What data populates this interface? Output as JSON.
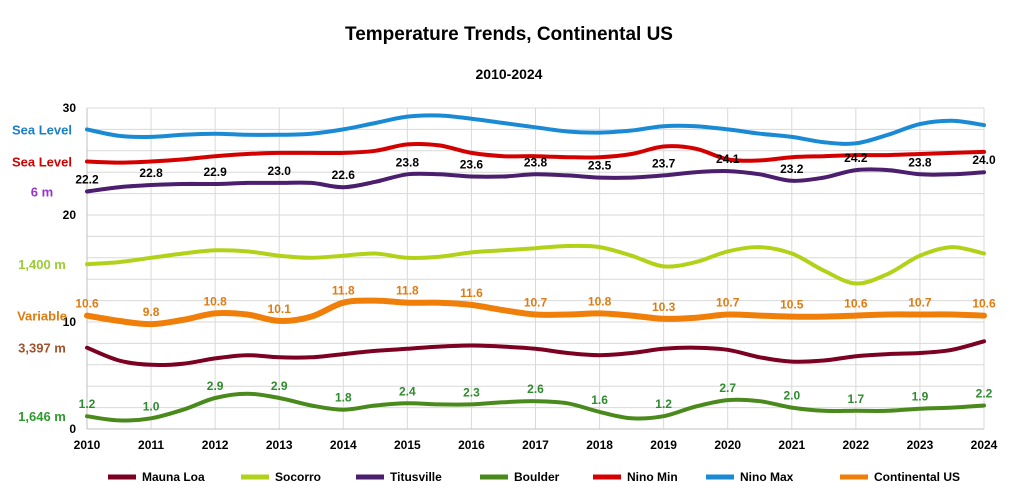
{
  "chart_data": {
    "type": "line",
    "title": "Temperature Trends, Continental US",
    "subtitle": "2010-2024",
    "xlabel": "",
    "ylabel": "",
    "x": [
      2010,
      2011,
      2012,
      2013,
      2014,
      2015,
      2016,
      2017,
      2018,
      2019,
      2020,
      2021,
      2022,
      2023,
      2024
    ],
    "x_ticks": [
      "2010",
      "2011",
      "2012",
      "2013",
      "2014",
      "2015",
      "2016",
      "2017",
      "2018",
      "2019",
      "2020",
      "2021",
      "2022",
      "2023",
      "2024"
    ],
    "y_ticks": [
      "0",
      "10",
      "20",
      "30"
    ],
    "ylim": [
      0,
      30
    ],
    "grid": true,
    "legend_position": "bottom",
    "series": [
      {
        "name": "Mauna Loa",
        "color": "#7b0022",
        "label_color": "#a0522d",
        "side_label": "3,397 m",
        "values": [
          [
            2010,
            7.6
          ],
          [
            2010.5,
            6.4
          ],
          [
            2011,
            6.0
          ],
          [
            2011.5,
            6.1
          ],
          [
            2012,
            6.6
          ],
          [
            2012.5,
            6.9
          ],
          [
            2013,
            6.7
          ],
          [
            2013.5,
            6.7
          ],
          [
            2014,
            7.0
          ],
          [
            2014.5,
            7.3
          ],
          [
            2015,
            7.5
          ],
          [
            2015.5,
            7.7
          ],
          [
            2016,
            7.8
          ],
          [
            2016.5,
            7.7
          ],
          [
            2017,
            7.5
          ],
          [
            2017.5,
            7.1
          ],
          [
            2018,
            6.9
          ],
          [
            2018.5,
            7.1
          ],
          [
            2019,
            7.5
          ],
          [
            2019.5,
            7.6
          ],
          [
            2020,
            7.4
          ],
          [
            2020.5,
            6.7
          ],
          [
            2021,
            6.3
          ],
          [
            2021.5,
            6.4
          ],
          [
            2022,
            6.8
          ],
          [
            2022.5,
            7.0
          ],
          [
            2023,
            7.1
          ],
          [
            2023.5,
            7.4
          ],
          [
            2024,
            8.2
          ]
        ],
        "labels": []
      },
      {
        "name": "Socorro",
        "color": "#b2d21a",
        "label_color": "#9acd32",
        "side_label": "1,400 m",
        "values": [
          [
            2010,
            15.4
          ],
          [
            2010.5,
            15.6
          ],
          [
            2011,
            16.0
          ],
          [
            2011.5,
            16.4
          ],
          [
            2012,
            16.7
          ],
          [
            2012.5,
            16.6
          ],
          [
            2013,
            16.2
          ],
          [
            2013.5,
            16.0
          ],
          [
            2014,
            16.2
          ],
          [
            2014.5,
            16.4
          ],
          [
            2015,
            16.0
          ],
          [
            2015.5,
            16.1
          ],
          [
            2016,
            16.5
          ],
          [
            2016.5,
            16.7
          ],
          [
            2017,
            16.9
          ],
          [
            2017.5,
            17.1
          ],
          [
            2018,
            17.0
          ],
          [
            2018.5,
            16.2
          ],
          [
            2019,
            15.2
          ],
          [
            2019.5,
            15.6
          ],
          [
            2020,
            16.6
          ],
          [
            2020.5,
            17.0
          ],
          [
            2021,
            16.4
          ],
          [
            2021.5,
            14.8
          ],
          [
            2022,
            13.6
          ],
          [
            2022.5,
            14.5
          ],
          [
            2023,
            16.2
          ],
          [
            2023.5,
            17.0
          ],
          [
            2024,
            16.4
          ]
        ],
        "labels": []
      },
      {
        "name": "Titusville",
        "color": "#4b1e6e",
        "label_color": "#9932cc",
        "side_label": "6 m",
        "values": [
          [
            2010,
            22.2
          ],
          [
            2010.5,
            22.6
          ],
          [
            2011,
            22.8
          ],
          [
            2011.5,
            22.9
          ],
          [
            2012,
            22.9
          ],
          [
            2012.5,
            23.0
          ],
          [
            2013,
            23.0
          ],
          [
            2013.5,
            23.0
          ],
          [
            2014,
            22.6
          ],
          [
            2014.5,
            23.1
          ],
          [
            2015,
            23.8
          ],
          [
            2015.5,
            23.8
          ],
          [
            2016,
            23.6
          ],
          [
            2016.5,
            23.6
          ],
          [
            2017,
            23.8
          ],
          [
            2017.5,
            23.7
          ],
          [
            2018,
            23.5
          ],
          [
            2018.5,
            23.5
          ],
          [
            2019,
            23.7
          ],
          [
            2019.5,
            24.0
          ],
          [
            2020,
            24.1
          ],
          [
            2020.5,
            23.8
          ],
          [
            2021,
            23.2
          ],
          [
            2021.5,
            23.5
          ],
          [
            2022,
            24.2
          ],
          [
            2022.5,
            24.2
          ],
          [
            2023,
            23.8
          ],
          [
            2023.5,
            23.8
          ],
          [
            2024,
            24.0
          ]
        ],
        "labels": [
          {
            "x": 2010,
            "text": "22.2"
          },
          {
            "x": 2011,
            "text": "22.8"
          },
          {
            "x": 2012,
            "text": "22.9"
          },
          {
            "x": 2013,
            "text": "23.0"
          },
          {
            "x": 2014,
            "text": "22.6"
          },
          {
            "x": 2015,
            "text": "23.8"
          },
          {
            "x": 2016,
            "text": "23.6"
          },
          {
            "x": 2017,
            "text": "23.8"
          },
          {
            "x": 2018,
            "text": "23.5"
          },
          {
            "x": 2019,
            "text": "23.7"
          },
          {
            "x": 2020,
            "text": "24.1"
          },
          {
            "x": 2021,
            "text": "23.2"
          },
          {
            "x": 2022,
            "text": "24.2"
          },
          {
            "x": 2023,
            "text": "23.8"
          },
          {
            "x": 2024,
            "text": "24.0"
          }
        ]
      },
      {
        "name": "Boulder",
        "color": "#4a8a1c",
        "label_color": "#2e9a2e",
        "side_label": "1,646 m",
        "values": [
          [
            2010,
            1.2
          ],
          [
            2010.5,
            0.8
          ],
          [
            2011,
            1.0
          ],
          [
            2011.5,
            1.8
          ],
          [
            2012,
            2.9
          ],
          [
            2012.5,
            3.3
          ],
          [
            2013,
            2.9
          ],
          [
            2013.5,
            2.2
          ],
          [
            2014,
            1.8
          ],
          [
            2014.5,
            2.2
          ],
          [
            2015,
            2.4
          ],
          [
            2015.5,
            2.3
          ],
          [
            2016,
            2.3
          ],
          [
            2016.5,
            2.5
          ],
          [
            2017,
            2.6
          ],
          [
            2017.5,
            2.4
          ],
          [
            2018,
            1.6
          ],
          [
            2018.5,
            1.0
          ],
          [
            2019,
            1.2
          ],
          [
            2019.5,
            2.1
          ],
          [
            2020,
            2.7
          ],
          [
            2020.5,
            2.6
          ],
          [
            2021,
            2.0
          ],
          [
            2021.5,
            1.7
          ],
          [
            2022,
            1.7
          ],
          [
            2022.5,
            1.7
          ],
          [
            2023,
            1.9
          ],
          [
            2023.5,
            2.0
          ],
          [
            2024,
            2.2
          ]
        ],
        "labels": [
          {
            "x": 2010,
            "text": "1.2"
          },
          {
            "x": 2011,
            "text": "1.0"
          },
          {
            "x": 2012,
            "text": "2.9"
          },
          {
            "x": 2013,
            "text": "2.9"
          },
          {
            "x": 2014,
            "text": "1.8"
          },
          {
            "x": 2015,
            "text": "2.4"
          },
          {
            "x": 2016,
            "text": "2.3"
          },
          {
            "x": 2017,
            "text": "2.6"
          },
          {
            "x": 2018,
            "text": "1.6"
          },
          {
            "x": 2019,
            "text": "1.2"
          },
          {
            "x": 2020,
            "text": "2.7"
          },
          {
            "x": 2021,
            "text": "2.0"
          },
          {
            "x": 2022,
            "text": "1.7"
          },
          {
            "x": 2023,
            "text": "1.9"
          },
          {
            "x": 2024,
            "text": "2.2"
          }
        ]
      },
      {
        "name": "Nino Min",
        "color": "#d40000",
        "label_color": "#d40000",
        "side_label": "Sea Level",
        "values": [
          [
            2010,
            25.0
          ],
          [
            2010.5,
            24.9
          ],
          [
            2011,
            25.0
          ],
          [
            2011.5,
            25.2
          ],
          [
            2012,
            25.5
          ],
          [
            2012.5,
            25.7
          ],
          [
            2013,
            25.8
          ],
          [
            2013.5,
            25.8
          ],
          [
            2014,
            25.8
          ],
          [
            2014.5,
            26.0
          ],
          [
            2015,
            26.6
          ],
          [
            2015.5,
            26.5
          ],
          [
            2016,
            25.8
          ],
          [
            2016.5,
            25.5
          ],
          [
            2017,
            25.5
          ],
          [
            2017.5,
            25.4
          ],
          [
            2018,
            25.4
          ],
          [
            2018.5,
            25.7
          ],
          [
            2019,
            26.4
          ],
          [
            2019.5,
            26.2
          ],
          [
            2020,
            25.2
          ],
          [
            2020.5,
            25.1
          ],
          [
            2021,
            25.4
          ],
          [
            2021.5,
            25.5
          ],
          [
            2022,
            25.6
          ],
          [
            2022.5,
            25.6
          ],
          [
            2023,
            25.7
          ],
          [
            2023.5,
            25.8
          ],
          [
            2024,
            25.9
          ]
        ],
        "labels": []
      },
      {
        "name": "Nino Max",
        "color": "#1a8ad4",
        "label_color": "#1a7fc8",
        "side_label": "Sea Level",
        "values": [
          [
            2010,
            28.0
          ],
          [
            2010.5,
            27.4
          ],
          [
            2011,
            27.3
          ],
          [
            2011.5,
            27.5
          ],
          [
            2012,
            27.6
          ],
          [
            2012.5,
            27.5
          ],
          [
            2013,
            27.5
          ],
          [
            2013.5,
            27.6
          ],
          [
            2014,
            28.0
          ],
          [
            2014.5,
            28.6
          ],
          [
            2015,
            29.2
          ],
          [
            2015.5,
            29.3
          ],
          [
            2016,
            29.0
          ],
          [
            2016.5,
            28.6
          ],
          [
            2017,
            28.2
          ],
          [
            2017.5,
            27.8
          ],
          [
            2018,
            27.7
          ],
          [
            2018.5,
            27.9
          ],
          [
            2019,
            28.3
          ],
          [
            2019.5,
            28.3
          ],
          [
            2020,
            28.0
          ],
          [
            2020.5,
            27.6
          ],
          [
            2021,
            27.3
          ],
          [
            2021.5,
            26.8
          ],
          [
            2022,
            26.7
          ],
          [
            2022.5,
            27.5
          ],
          [
            2023,
            28.5
          ],
          [
            2023.5,
            28.8
          ],
          [
            2024,
            28.4
          ]
        ],
        "labels": []
      },
      {
        "name": "Continental US",
        "color": "#f07f09",
        "label_color": "#e07b10",
        "side_label": "Variable",
        "values": [
          [
            2010,
            10.6
          ],
          [
            2010.5,
            10.1
          ],
          [
            2011,
            9.8
          ],
          [
            2011.5,
            10.2
          ],
          [
            2012,
            10.8
          ],
          [
            2012.5,
            10.7
          ],
          [
            2013,
            10.1
          ],
          [
            2013.5,
            10.5
          ],
          [
            2014,
            11.8
          ],
          [
            2014.5,
            12.0
          ],
          [
            2015,
            11.8
          ],
          [
            2015.5,
            11.8
          ],
          [
            2016,
            11.6
          ],
          [
            2016.5,
            11.1
          ],
          [
            2017,
            10.7
          ],
          [
            2017.5,
            10.7
          ],
          [
            2018,
            10.8
          ],
          [
            2018.5,
            10.6
          ],
          [
            2019,
            10.3
          ],
          [
            2019.5,
            10.4
          ],
          [
            2020,
            10.7
          ],
          [
            2020.5,
            10.6
          ],
          [
            2021,
            10.5
          ],
          [
            2021.5,
            10.5
          ],
          [
            2022,
            10.6
          ],
          [
            2022.5,
            10.7
          ],
          [
            2023,
            10.7
          ],
          [
            2023.5,
            10.7
          ],
          [
            2024,
            10.6
          ]
        ],
        "labels": [
          {
            "x": 2010,
            "text": "10.6"
          },
          {
            "x": 2011,
            "text": "9.8"
          },
          {
            "x": 2012,
            "text": "10.8"
          },
          {
            "x": 2013,
            "text": "10.1"
          },
          {
            "x": 2014,
            "text": "11.8"
          },
          {
            "x": 2015,
            "text": "11.8"
          },
          {
            "x": 2016,
            "text": "11.6"
          },
          {
            "x": 2017,
            "text": "10.7"
          },
          {
            "x": 2018,
            "text": "10.8"
          },
          {
            "x": 2019,
            "text": "10.3"
          },
          {
            "x": 2020,
            "text": "10.7"
          },
          {
            "x": 2021,
            "text": "10.5"
          },
          {
            "x": 2022,
            "text": "10.6"
          },
          {
            "x": 2023,
            "text": "10.7"
          },
          {
            "x": 2024,
            "text": "10.6"
          }
        ]
      }
    ]
  }
}
